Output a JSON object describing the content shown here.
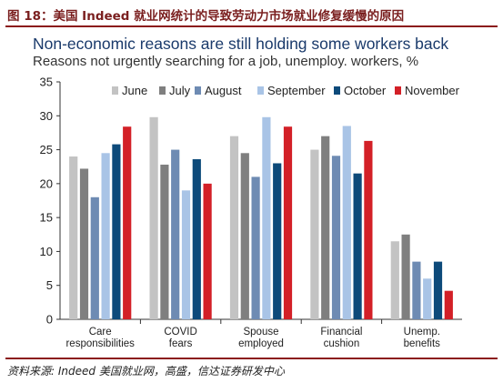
{
  "caption": "图 18：美国 Indeed 就业网统计的导致劳动力市场就业修复缓慢的原因",
  "source": "资料来源: Indeed 美国就业网，高盛，信达证券研发中心",
  "chart_data": {
    "type": "bar",
    "title": "Non-economic reasons are still holding some workers back",
    "subtitle": "Reasons not urgently searching for a job, unemploy. workers, %",
    "categories": [
      [
        "Care",
        "responsibilities"
      ],
      [
        "COVID",
        "fears"
      ],
      [
        "Spouse",
        "employed"
      ],
      [
        "Financial",
        "cushion"
      ],
      [
        "Unemp.",
        "benefits"
      ]
    ],
    "series": [
      {
        "name": "June",
        "color": "#c3c3c3",
        "values": [
          24,
          29.8,
          27,
          25,
          11.5
        ]
      },
      {
        "name": "July",
        "color": "#7f7f7f",
        "values": [
          22.2,
          22.8,
          24.5,
          27,
          12.5
        ]
      },
      {
        "name": "August",
        "color": "#6e8bb3",
        "values": [
          18,
          25,
          21,
          24.1,
          8.5
        ]
      },
      {
        "name": "September",
        "color": "#a9c4e6",
        "values": [
          24.5,
          19,
          29.8,
          28.5,
          6
        ]
      },
      {
        "name": "October",
        "color": "#0d4a7a",
        "values": [
          25.8,
          23.6,
          23,
          21.5,
          8.5
        ]
      },
      {
        "name": "November",
        "color": "#d32027",
        "values": [
          28.4,
          20,
          28.4,
          26.3,
          4.2
        ]
      }
    ],
    "ylim": [
      0,
      35
    ],
    "yticks": [
      0,
      5,
      10,
      15,
      20,
      25,
      30,
      35
    ],
    "legend_position": "top-right"
  }
}
